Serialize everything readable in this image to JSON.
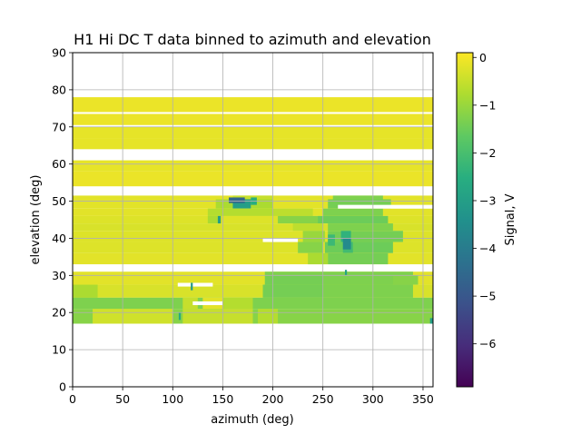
{
  "chart_data": {
    "type": "heatmap",
    "title": "H1 Hi DC T data binned to azimuth and elevation",
    "xlabel": "azimuth (deg)",
    "ylabel": "elevation (deg)",
    "xlim": [
      0,
      360
    ],
    "ylim": [
      0,
      90
    ],
    "x_ticks": [
      "0",
      "50",
      "100",
      "150",
      "200",
      "250",
      "300",
      "350"
    ],
    "y_ticks": [
      "0",
      "10",
      "20",
      "30",
      "40",
      "50",
      "60",
      "70",
      "80",
      "90"
    ],
    "grid": true,
    "colorbar": {
      "label": "Signal, V",
      "min": -6.9,
      "max": 0.1,
      "ticks": [
        "0",
        "−1",
        "−2",
        "−3",
        "−4",
        "−5",
        "−6"
      ],
      "colormap": "viridis"
    },
    "bands": [
      {
        "el": [
          74,
          78
        ],
        "background": -0.1,
        "patches": []
      },
      {
        "el": [
          70.5,
          73.5
        ],
        "background": -0.1,
        "patches": []
      },
      {
        "el": [
          67,
          70
        ],
        "background": -0.15,
        "patches": []
      },
      {
        "el": [
          64,
          67
        ],
        "background": -0.15,
        "patches": []
      },
      {
        "el": [
          58,
          61
        ],
        "background": -0.15,
        "patches": []
      },
      {
        "el": [
          54,
          58
        ],
        "background": -0.1,
        "patches": []
      },
      {
        "el": [
          50.5,
          51.5
        ],
        "background": -0.2,
        "patches": [
          {
            "az": [
              160,
              200
            ],
            "v": -0.5
          },
          {
            "az": [
              260,
              310
            ],
            "v": -1.3
          }
        ]
      },
      {
        "el": [
          48,
          50.5
        ],
        "background": -0.2,
        "patches": [
          {
            "az": [
              143,
              200
            ],
            "v": -0.8
          },
          {
            "az": [
              255,
              318
            ],
            "v": -1.4
          },
          {
            "az": [
              160,
              178
            ],
            "v": -3.0
          }
        ]
      },
      {
        "el": [
          46,
          48
        ],
        "background": -0.2,
        "patches": [
          {
            "az": [
              135,
              200
            ],
            "v": -0.7
          },
          {
            "az": [
              200,
              240
            ],
            "v": -0.6
          },
          {
            "az": [
              250,
              310
            ],
            "v": -1.3
          }
        ]
      },
      {
        "el": [
          44,
          46
        ],
        "background": -0.25,
        "patches": [
          {
            "az": [
              135,
              145
            ],
            "v": -0.8
          },
          {
            "az": [
              205,
              248
            ],
            "v": -1.2
          },
          {
            "az": [
              245,
              315
            ],
            "v": -1.5
          }
        ]
      },
      {
        "el": [
          42,
          44
        ],
        "background": -0.3,
        "patches": [
          {
            "az": [
              220,
              250
            ],
            "v": -0.6
          },
          {
            "az": [
              255,
              320
            ],
            "v": -1.3
          }
        ]
      },
      {
        "el": [
          39,
          42
        ],
        "background": -0.25,
        "patches": [
          {
            "az": [
              230,
              252
            ],
            "v": -1.0
          },
          {
            "az": [
              255,
              330
            ],
            "v": -1.4
          },
          {
            "az": [
              268,
              278
            ],
            "v": -2.4
          }
        ]
      },
      {
        "el": [
          36,
          39
        ],
        "background": -0.25,
        "patches": [
          {
            "az": [
              225,
              250
            ],
            "v": -1.2
          },
          {
            "az": [
              252,
              320
            ],
            "v": -1.5
          },
          {
            "az": [
              270,
              280
            ],
            "v": -2.1
          }
        ]
      },
      {
        "el": [
          33,
          36
        ],
        "background": -0.2,
        "patches": [
          {
            "az": [
              235,
              255
            ],
            "v": -0.8
          },
          {
            "az": [
              255,
              315
            ],
            "v": -1.4
          }
        ]
      },
      {
        "el": [
          30,
          31
        ],
        "background": -0.2,
        "patches": [
          {
            "az": [
              192,
              340
            ],
            "v": -1.3
          }
        ]
      },
      {
        "el": [
          27.5,
          30
        ],
        "background": -0.2,
        "patches": [
          {
            "az": [
              192,
              250
            ],
            "v": -1.4
          },
          {
            "az": [
              250,
              345
            ],
            "v": -1.3
          },
          {
            "az": [
              320,
              345
            ],
            "v": -1.2
          }
        ]
      },
      {
        "el": [
          24,
          27.5
        ],
        "background": -0.3,
        "patches": [
          {
            "az": [
              0,
              25
            ],
            "v": -0.8
          },
          {
            "az": [
              190,
              250
            ],
            "v": -1.4
          },
          {
            "az": [
              250,
              340
            ],
            "v": -1.3
          }
        ]
      },
      {
        "el": [
          21,
          24
        ],
        "background": -1.3,
        "patches": [
          {
            "az": [
              110,
              125
            ],
            "v": -0.5
          },
          {
            "az": [
              150,
              180
            ],
            "v": -0.7
          },
          {
            "az": [
              130,
              150
            ],
            "v": -0.2
          }
        ]
      },
      {
        "el": [
          17,
          21
        ],
        "background": -1.2,
        "patches": [
          {
            "az": [
              20,
              100
            ],
            "v": -0.4
          },
          {
            "az": [
              110,
              180
            ],
            "v": -0.5
          },
          {
            "az": [
              185,
              205
            ],
            "v": -0.7
          }
        ]
      }
    ],
    "gaps": [
      {
        "el": [
          48,
          49
        ],
        "az": [
          265,
          360
        ]
      },
      {
        "el": [
          39,
          40
        ],
        "az": [
          190,
          225
        ]
      },
      {
        "el": [
          27,
          28
        ],
        "az": [
          105,
          140
        ]
      },
      {
        "el": [
          22,
          23
        ],
        "az": [
          120,
          150
        ]
      }
    ],
    "outliers": [
      {
        "az": [
          156,
          172
        ],
        "el": [
          49.5,
          51
        ],
        "v": -4.6
      },
      {
        "az": [
          178,
          184
        ],
        "el": [
          49,
          51
        ],
        "v": -2.6
      },
      {
        "az": [
          145,
          148
        ],
        "el": [
          44,
          46
        ],
        "v": -3.0
      },
      {
        "az": [
          270,
          278
        ],
        "el": [
          37,
          40
        ],
        "v": -3.6
      },
      {
        "az": [
          255,
          262
        ],
        "el": [
          38,
          41
        ],
        "v": -2.2
      },
      {
        "az": [
          272,
          274
        ],
        "el": [
          30,
          31.5
        ],
        "v": -2.9
      },
      {
        "az": [
          106,
          108
        ],
        "el": [
          18,
          20
        ],
        "v": -2.7
      },
      {
        "az": [
          118,
          120
        ],
        "el": [
          26,
          28
        ],
        "v": -3.2
      },
      {
        "az": [
          357,
          360
        ],
        "el": [
          17,
          18.5
        ],
        "v": -3.0
      }
    ]
  }
}
